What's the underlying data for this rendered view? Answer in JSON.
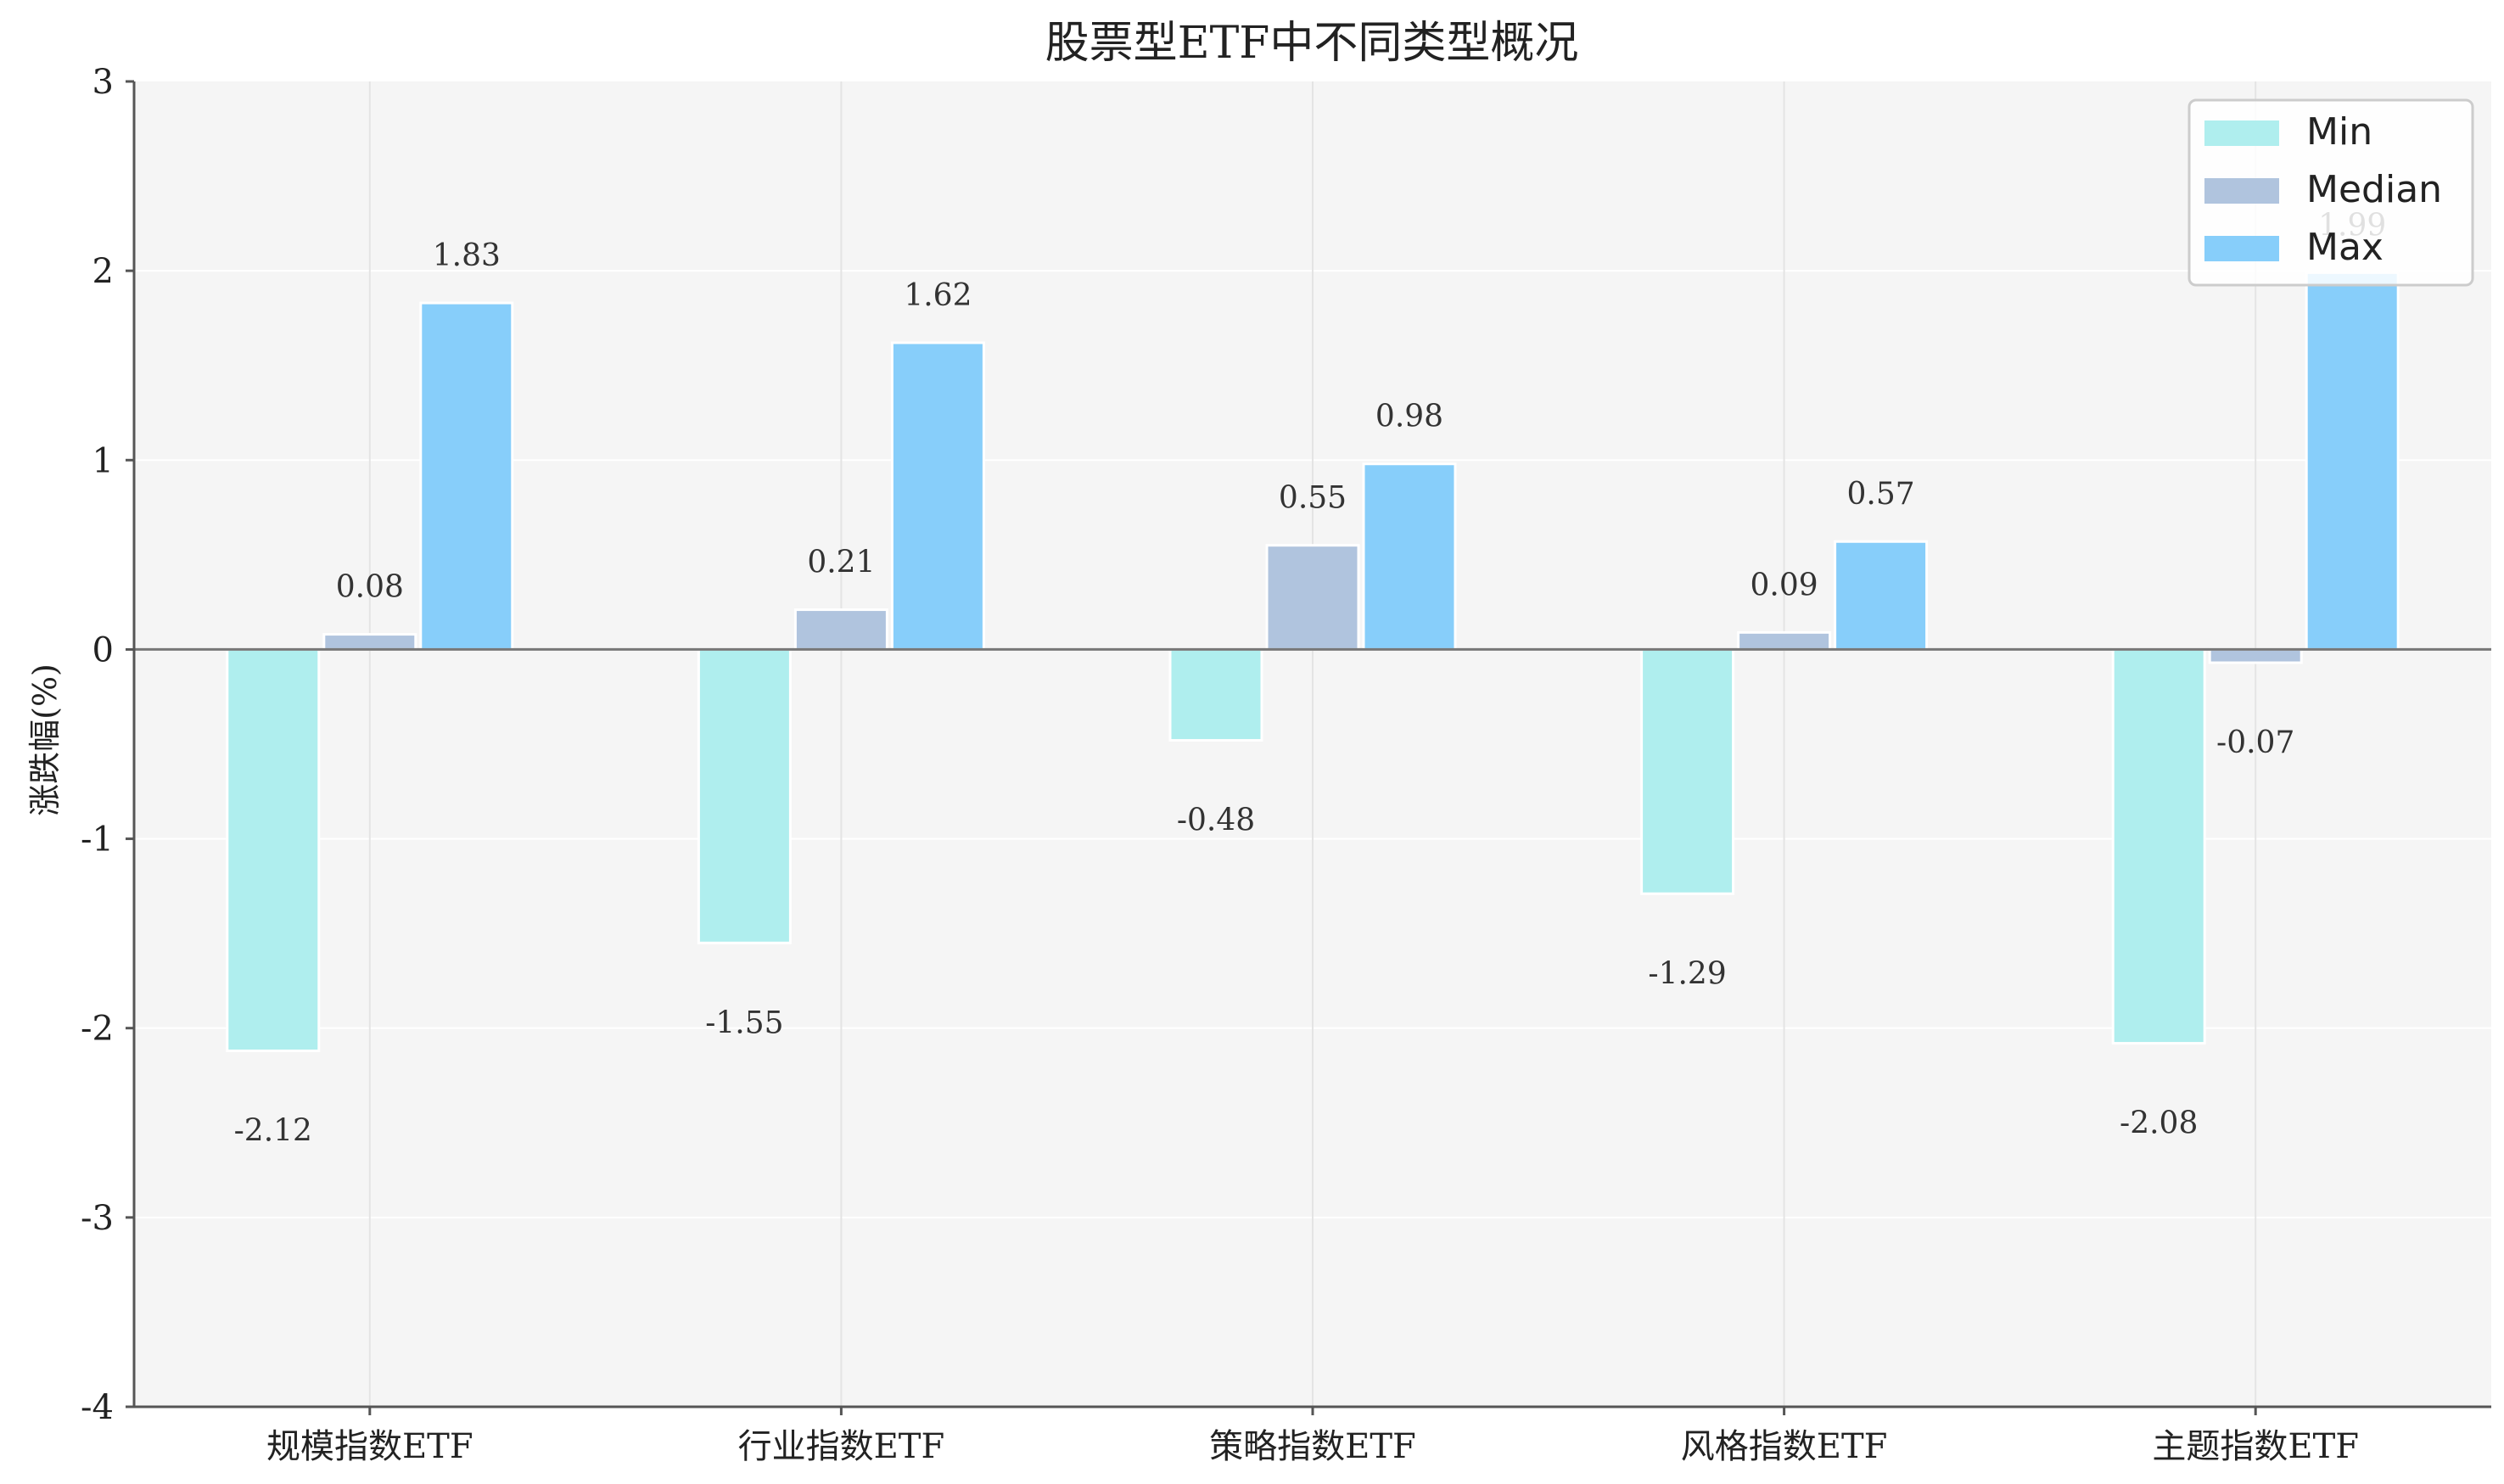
{
  "chart_data": {
    "type": "bar",
    "title": "股票型ETF中不同类型概况",
    "xlabel": "",
    "ylabel": "涨跌幅(%)",
    "ylim": [
      -4,
      3
    ],
    "yticks": [
      "-4",
      "-3",
      "-2",
      "-1",
      "0",
      "1",
      "2",
      "3"
    ],
    "categories": [
      "规模指数ETF",
      "行业指数ETF",
      "策略指数ETF",
      "风格指数ETF",
      "主题指数ETF"
    ],
    "series": [
      {
        "name": "Min",
        "color": "#afeeee",
        "values": [
          -2.12,
          -1.55,
          -0.48,
          -1.29,
          -2.08
        ],
        "labels": [
          "-2.12",
          "-1.55",
          "-0.48",
          "-1.29",
          "-2.08"
        ]
      },
      {
        "name": "Median",
        "color": "#b0c4de",
        "values": [
          0.08,
          0.21,
          0.55,
          0.09,
          -0.07
        ],
        "labels": [
          "0.08",
          "0.21",
          "0.55",
          "0.09",
          "-0.07"
        ]
      },
      {
        "name": "Max",
        "color": "#87cefa",
        "values": [
          1.83,
          1.62,
          0.98,
          0.57,
          1.99
        ],
        "labels": [
          "1.83",
          "1.62",
          "0.98",
          "0.57",
          "1.99"
        ]
      }
    ],
    "grid": true,
    "legend_position": "top-right",
    "colors": {
      "plot_background": "#f5f5f5",
      "grid": "#e4e4e4",
      "axis": "#555555",
      "zero_line": "#777777"
    }
  }
}
